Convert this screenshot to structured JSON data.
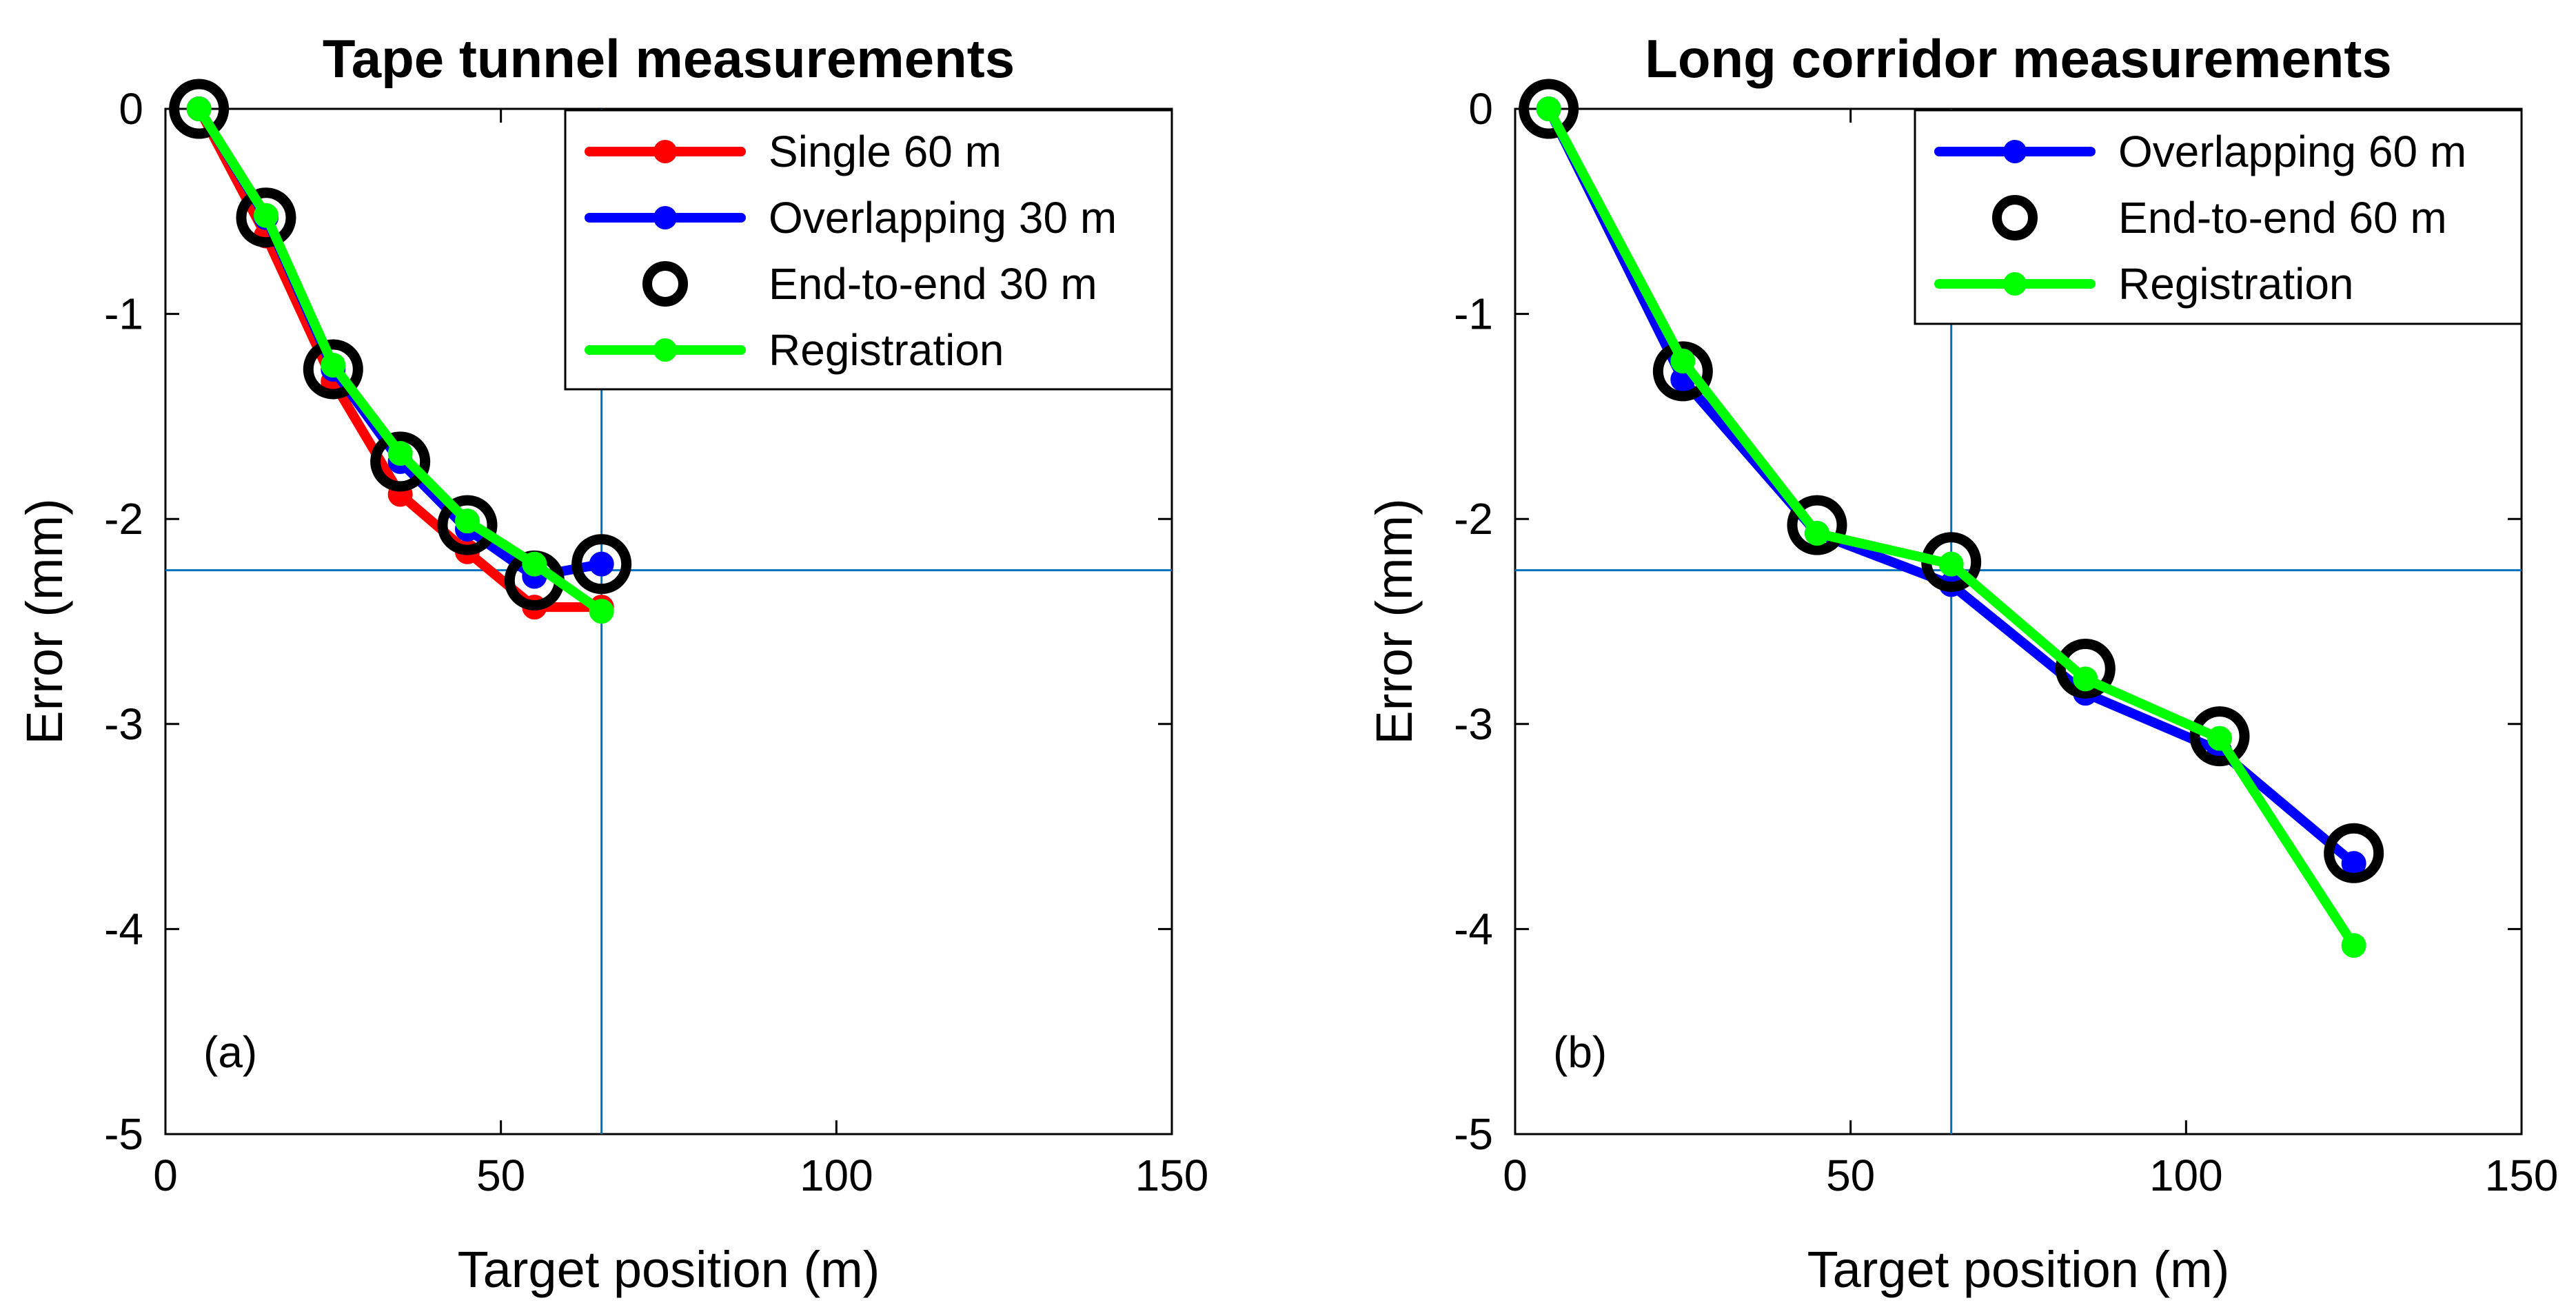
{
  "chart_data": [
    {
      "type": "line",
      "title": "Tape tunnel measurements",
      "xlabel": "Target position (m)",
      "ylabel": "Error (mm)",
      "xlim": [
        0,
        150
      ],
      "ylim": [
        -5,
        0
      ],
      "xticks": [
        0,
        50,
        100,
        150
      ],
      "yticks": [
        0,
        -1,
        -2,
        -3,
        -4,
        -5
      ],
      "grid": false,
      "legend_position": "top-right",
      "panel_label": "(a)",
      "reference_lines": {
        "x": 65,
        "y": -2.25,
        "color": "#0072BD"
      },
      "series": [
        {
          "name": "Single 60 m",
          "style": "line-marker",
          "color": "#ff0000",
          "x": [
            5,
            15,
            25,
            35,
            45,
            55,
            65
          ],
          "values": [
            0,
            -0.62,
            -1.33,
            -1.88,
            -2.16,
            -2.43,
            -2.43
          ]
        },
        {
          "name": "Overlapping 30 m",
          "style": "line-marker",
          "color": "#0000ff",
          "x": [
            5,
            15,
            25,
            35,
            45,
            55,
            65
          ],
          "values": [
            0,
            -0.53,
            -1.27,
            -1.72,
            -2.05,
            -2.28,
            -2.22
          ]
        },
        {
          "name": "End-to-end 30 m",
          "style": "circle-marker",
          "color": "#000000",
          "x": [
            5,
            15,
            25,
            35,
            45,
            55,
            65
          ],
          "values": [
            0,
            -0.53,
            -1.27,
            -1.72,
            -2.03,
            -2.3,
            -2.22
          ]
        },
        {
          "name": "Registration",
          "style": "line-marker",
          "color": "#00ff00",
          "x": [
            5,
            15,
            25,
            35,
            45,
            55,
            65
          ],
          "values": [
            0,
            -0.52,
            -1.25,
            -1.68,
            -2.01,
            -2.22,
            -2.45
          ]
        }
      ]
    },
    {
      "type": "line",
      "title": "Long corridor measurements",
      "xlabel": "Target position (m)",
      "ylabel": "Error (mm)",
      "xlim": [
        0,
        150
      ],
      "ylim": [
        -5,
        0
      ],
      "xticks": [
        0,
        50,
        100,
        150
      ],
      "yticks": [
        0,
        -1,
        -2,
        -3,
        -4,
        -5
      ],
      "grid": false,
      "legend_position": "top-right",
      "panel_label": "(b)",
      "reference_lines": {
        "x": 65,
        "y": -2.25,
        "color": "#0072BD"
      },
      "series": [
        {
          "name": "Overlapping 60 m",
          "style": "line-marker",
          "color": "#0000ff",
          "x": [
            5,
            25,
            45,
            65,
            85,
            105,
            125
          ],
          "values": [
            0,
            -1.32,
            -2.07,
            -2.32,
            -2.85,
            -3.13,
            -3.68
          ]
        },
        {
          "name": "End-to-end 60 m",
          "style": "circle-marker",
          "color": "#000000",
          "x": [
            5,
            25,
            45,
            65,
            85,
            105,
            125
          ],
          "values": [
            0,
            -1.28,
            -2.03,
            -2.21,
            -2.73,
            -3.06,
            -3.63
          ]
        },
        {
          "name": "Registration",
          "style": "line-marker",
          "color": "#00ff00",
          "x": [
            5,
            25,
            45,
            65,
            85,
            105,
            125
          ],
          "values": [
            0,
            -1.23,
            -2.07,
            -2.22,
            -2.78,
            -3.07,
            -4.08
          ]
        }
      ]
    }
  ]
}
